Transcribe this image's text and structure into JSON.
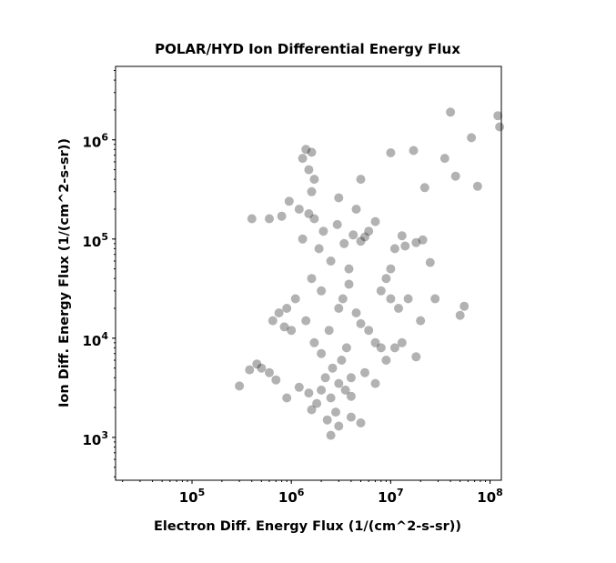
{
  "chart_data": {
    "type": "scatter",
    "title": "POLAR/HYD  Ion Differential Energy Flux",
    "xlabel": "Electron Diff. Energy Flux (1/(cm^2-s-sr))",
    "ylabel": "Ion Diff. Energy Flux (1/(cm^2-s-sr))",
    "xscale": "log",
    "yscale": "log",
    "xlim": [
      17000,
      130000000
    ],
    "ylim": [
      370,
      5500000
    ],
    "x_ticks": [
      {
        "base": "10",
        "exp": "5",
        "value": 100000
      },
      {
        "base": "10",
        "exp": "6",
        "value": 1000000
      },
      {
        "base": "10",
        "exp": "7",
        "value": 10000000
      },
      {
        "base": "10",
        "exp": "8",
        "value": 100000000
      }
    ],
    "y_ticks": [
      {
        "base": "10",
        "exp": "3",
        "value": 1000
      },
      {
        "base": "10",
        "exp": "4",
        "value": 10000
      },
      {
        "base": "10",
        "exp": "5",
        "value": 100000
      },
      {
        "base": "10",
        "exp": "6",
        "value": 1000000
      }
    ],
    "grid": false,
    "legend": "none",
    "marker_color": "#000000",
    "marker_alpha": 0.3,
    "points": [
      [
        2000000,
        3000
      ],
      [
        2500000,
        2500
      ],
      [
        1800000,
        2200
      ],
      [
        3000000,
        3500
      ],
      [
        2200000,
        4000
      ],
      [
        1500000,
        2800
      ],
      [
        3500000,
        3000
      ],
      [
        2800000,
        1800
      ],
      [
        1600000,
        1900
      ],
      [
        4000000,
        2600
      ],
      [
        1200000,
        3200
      ],
      [
        900000,
        2500
      ],
      [
        2600000,
        5000
      ],
      [
        3200000,
        6000
      ],
      [
        2000000,
        7000
      ],
      [
        1700000,
        9000
      ],
      [
        3600000,
        8000
      ],
      [
        2400000,
        12000
      ],
      [
        1400000,
        15000
      ],
      [
        3000000,
        20000
      ],
      [
        3300000,
        25000
      ],
      [
        2000000,
        30000
      ],
      [
        1600000,
        40000
      ],
      [
        3800000,
        50000
      ],
      [
        2500000,
        60000
      ],
      [
        1900000,
        80000
      ],
      [
        3400000,
        90000
      ],
      [
        1300000,
        100000
      ],
      [
        2100000,
        120000
      ],
      [
        2900000,
        140000
      ],
      [
        1700000,
        160000
      ],
      [
        1500000,
        180000
      ],
      [
        800000,
        170000
      ],
      [
        600000,
        160000
      ],
      [
        400000,
        160000
      ],
      [
        950000,
        240000
      ],
      [
        1200000,
        200000
      ],
      [
        1600000,
        300000
      ],
      [
        1500000,
        500000
      ],
      [
        1400000,
        800000
      ],
      [
        1600000,
        750000
      ],
      [
        1300000,
        650000
      ],
      [
        1700000,
        400000
      ],
      [
        4200000,
        110000
      ],
      [
        5000000,
        95000
      ],
      [
        5500000,
        105000
      ],
      [
        6000000,
        120000
      ],
      [
        7000000,
        150000
      ],
      [
        3800000,
        35000
      ],
      [
        4500000,
        18000
      ],
      [
        5000000,
        14000
      ],
      [
        6000000,
        12000
      ],
      [
        7000000,
        9000
      ],
      [
        8000000,
        8000
      ],
      [
        9000000,
        6000
      ],
      [
        5500000,
        4500
      ],
      [
        4000000,
        4000
      ],
      [
        7000000,
        3500
      ],
      [
        500000,
        5000
      ],
      [
        600000,
        4500
      ],
      [
        700000,
        3800
      ],
      [
        450000,
        5500
      ],
      [
        380000,
        4800
      ],
      [
        300000,
        3300
      ],
      [
        850000,
        13000
      ],
      [
        1000000,
        12000
      ],
      [
        900000,
        20000
      ],
      [
        1100000,
        25000
      ],
      [
        750000,
        18000
      ],
      [
        650000,
        15000
      ],
      [
        2500000,
        1050
      ],
      [
        3000000,
        1300
      ],
      [
        5000000,
        1400
      ],
      [
        4000000,
        1600
      ],
      [
        2300000,
        1500
      ],
      [
        5000000,
        400000
      ],
      [
        3000000,
        260000
      ],
      [
        4500000,
        200000
      ],
      [
        10000000,
        50000
      ],
      [
        9000000,
        40000
      ],
      [
        8000000,
        30000
      ],
      [
        10000000,
        25000
      ],
      [
        12000000,
        20000
      ],
      [
        15000000,
        25000
      ],
      [
        20000000,
        15000
      ],
      [
        18000000,
        6500
      ],
      [
        11000000,
        8000
      ],
      [
        13000000,
        9000
      ],
      [
        10000000,
        740000
      ],
      [
        17000000,
        780000
      ],
      [
        22000000,
        330000
      ],
      [
        35000000,
        650000
      ],
      [
        40000000,
        1900000
      ],
      [
        45000000,
        430000
      ],
      [
        65000000,
        1050000
      ],
      [
        75000000,
        340000
      ],
      [
        120000000,
        1750000
      ],
      [
        125000000,
        1350000
      ],
      [
        55000000,
        21000
      ],
      [
        50000000,
        17000
      ],
      [
        28000000,
        25000
      ],
      [
        25000000,
        58000
      ],
      [
        21000000,
        98000
      ],
      [
        18000000,
        92000
      ],
      [
        14000000,
        85000
      ],
      [
        13000000,
        108000
      ],
      [
        11000000,
        80000
      ]
    ]
  }
}
